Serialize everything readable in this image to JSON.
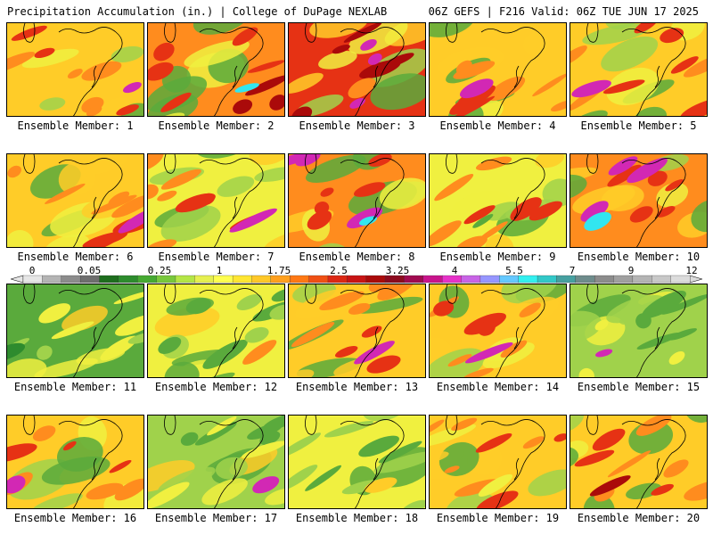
{
  "header": {
    "left_title": "Precipitation Accumulation (in.) | College of DuPage NEXLAB",
    "right_title": "06Z GEFS | F216 Valid: 06Z TUE JUN 17 2025"
  },
  "panels": [
    {
      "label": "Ensemble Member: 1"
    },
    {
      "label": "Ensemble Member: 2"
    },
    {
      "label": "Ensemble Member: 3"
    },
    {
      "label": "Ensemble Member: 4"
    },
    {
      "label": "Ensemble Member: 5"
    },
    {
      "label": "Ensemble Member: 6"
    },
    {
      "label": "Ensemble Member: 7"
    },
    {
      "label": "Ensemble Member: 8"
    },
    {
      "label": "Ensemble Member: 9"
    },
    {
      "label": "Ensemble Member: 10"
    },
    {
      "label": "Ensemble Member: 11"
    },
    {
      "label": "Ensemble Member: 12"
    },
    {
      "label": "Ensemble Member: 13"
    },
    {
      "label": "Ensemble Member: 14"
    },
    {
      "label": "Ensemble Member: 15"
    },
    {
      "label": "Ensemble Member: 16"
    },
    {
      "label": "Ensemble Member: 17"
    },
    {
      "label": "Ensemble Member: 18"
    },
    {
      "label": "Ensemble Member: 19"
    },
    {
      "label": "Ensemble Member: 20"
    }
  ],
  "colorbar": {
    "tick_labels": [
      "0",
      "0.05",
      "0.25",
      "1",
      "1.75",
      "2.5",
      "3.25",
      "4",
      "5.5",
      "7",
      "9",
      "12"
    ],
    "colors": [
      "#e6e6e6",
      "#b4b4b4",
      "#8c8c8c",
      "#6e6e6e",
      "#1e6e1e",
      "#2d8c2d",
      "#46aa32",
      "#78c83c",
      "#b4e646",
      "#e6f050",
      "#ffff50",
      "#ffe632",
      "#ffc828",
      "#ffa01e",
      "#ff7814",
      "#f05014",
      "#dc2814",
      "#c81414",
      "#aa0a0a",
      "#8c0a1e",
      "#a00a50",
      "#c8148c",
      "#e632c8",
      "#c864e6",
      "#9696ff",
      "#64c8ff",
      "#32f0f0",
      "#32c8c8",
      "#46a0a0",
      "#6e8c8c",
      "#8c8c8c",
      "#a0a0a0",
      "#b4b4b4",
      "#c8c8c8",
      "#dcdcdc"
    ]
  },
  "map_colors": {
    "dark_green": "#2e8b2e",
    "green": "#5aaa3c",
    "light_green": "#a0d24b",
    "yellow": "#f0f040",
    "gold": "#ffcc28",
    "orange": "#ff8c1e",
    "red": "#e63214",
    "dark_red": "#aa0a0a",
    "magenta": "#d228b4",
    "cyan": "#32e6f0"
  }
}
